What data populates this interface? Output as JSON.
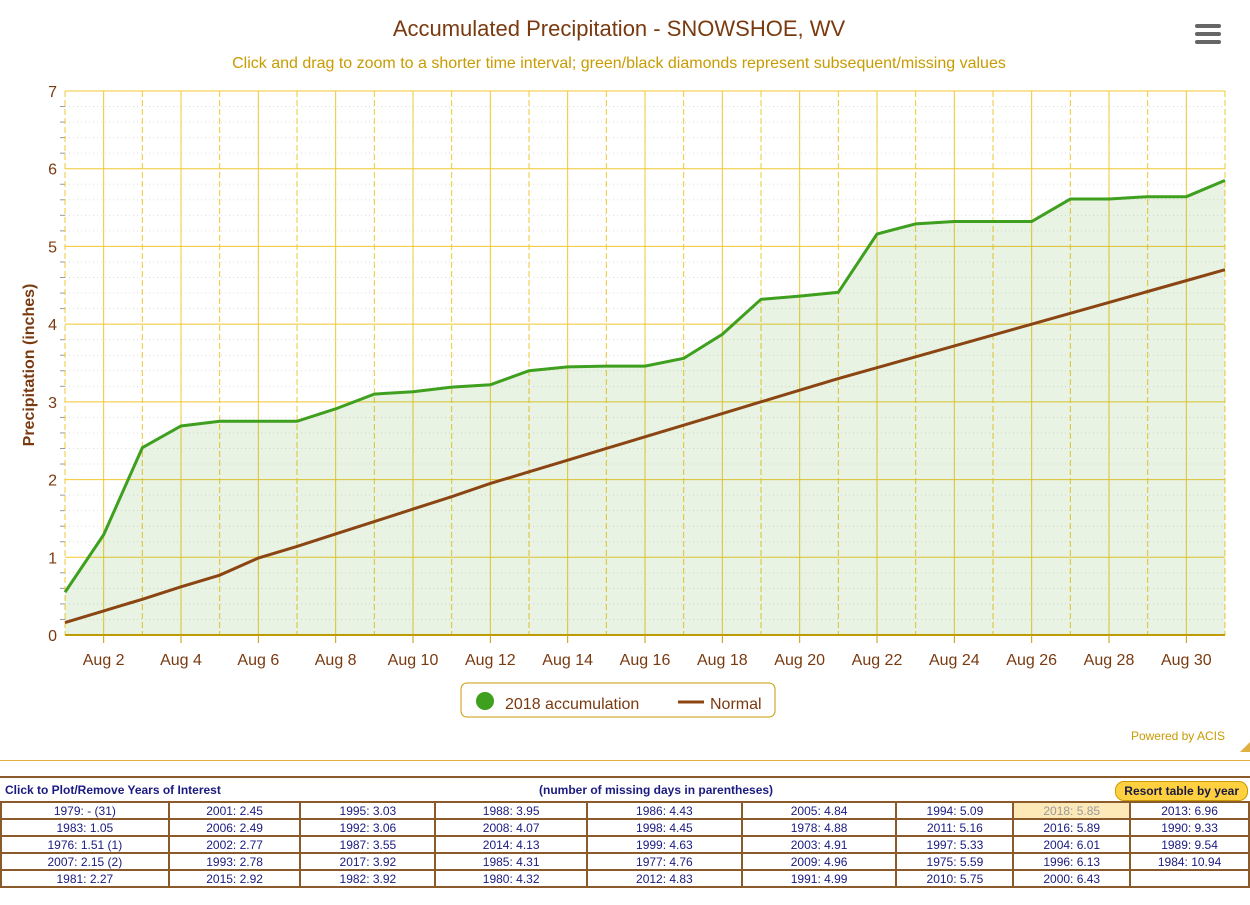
{
  "chart_data": {
    "type": "area",
    "title": "Accumulated Precipitation - SNOWSHOE, WV",
    "subtitle": "Click and drag to zoom to a shorter time interval; green/black diamonds represent subsequent/missing values",
    "ylabel": "Precipitation (inches)",
    "xlabel": "",
    "ylim": [
      0,
      7
    ],
    "yticks": [
      "0",
      "1",
      "2",
      "3",
      "4",
      "5",
      "6",
      "7"
    ],
    "xticks": [
      "Aug 2",
      "Aug 4",
      "Aug 6",
      "Aug 8",
      "Aug 10",
      "Aug 12",
      "Aug 14",
      "Aug 16",
      "Aug 18",
      "Aug 20",
      "Aug 22",
      "Aug 24",
      "Aug 26",
      "Aug 28",
      "Aug 30"
    ],
    "days": [
      1,
      2,
      3,
      4,
      5,
      6,
      7,
      8,
      9,
      10,
      11,
      12,
      13,
      14,
      15,
      16,
      17,
      18,
      19,
      20,
      21,
      22,
      23,
      24,
      25,
      26,
      27,
      28,
      29,
      30,
      31
    ],
    "series": [
      {
        "name": "2018 accumulation",
        "color": "#3f9f1f",
        "values": [
          0.55,
          1.29,
          2.41,
          2.69,
          2.75,
          2.75,
          2.75,
          2.91,
          3.1,
          3.13,
          3.19,
          3.22,
          3.4,
          3.45,
          3.46,
          3.46,
          3.56,
          3.87,
          4.32,
          4.36,
          4.41,
          5.16,
          5.29,
          5.32,
          5.32,
          5.32,
          5.61,
          5.61,
          5.64,
          5.64,
          5.85
        ]
      },
      {
        "name": "Normal",
        "color": "#8b4513",
        "values": [
          0.16,
          0.31,
          0.46,
          0.62,
          0.77,
          0.99,
          1.14,
          1.3,
          1.46,
          1.62,
          1.78,
          1.95,
          2.1,
          2.25,
          2.4,
          2.55,
          2.7,
          2.85,
          3.0,
          3.15,
          3.3,
          3.44,
          3.58,
          3.72,
          3.86,
          4.0,
          4.14,
          4.28,
          4.42,
          4.56,
          4.7
        ]
      }
    ],
    "legend": "bottom-center",
    "grid": true
  },
  "credit": "Powered by ACIS",
  "table": {
    "header_left": "Click to Plot/Remove Years of Interest",
    "header_center": "(number of missing days in parentheses)",
    "resort_label": "Resort table by year",
    "highlight": "2018: 5.85",
    "rows": [
      [
        "1979: - (31)",
        "2001: 2.45",
        "1995: 3.03",
        "1988: 3.95",
        "1986: 4.43",
        "2005: 4.84",
        "1994: 5.09",
        "2018: 5.85",
        "2013: 6.96"
      ],
      [
        "1983: 1.05",
        "2006: 2.49",
        "1992: 3.06",
        "2008: 4.07",
        "1998: 4.45",
        "1978: 4.88",
        "2011: 5.16",
        "2016: 5.89",
        "1990: 9.33"
      ],
      [
        "1976: 1.51 (1)",
        "2002: 2.77",
        "1987: 3.55",
        "2014: 4.13",
        "1999: 4.63",
        "2003: 4.91",
        "1997: 5.33",
        "2004: 6.01",
        "1989: 9.54"
      ],
      [
        "2007: 2.15 (2)",
        "1993: 2.78",
        "2017: 3.92",
        "1985: 4.31",
        "1977: 4.76",
        "2009: 4.96",
        "1975: 5.59",
        "1996: 6.13",
        "1984: 10.94"
      ],
      [
        "1981: 2.27",
        "2015: 2.92",
        "1982: 3.92",
        "1980: 4.32",
        "2012: 4.83",
        "1991: 4.99",
        "2010: 5.75",
        "2000: 6.43",
        ""
      ]
    ]
  }
}
